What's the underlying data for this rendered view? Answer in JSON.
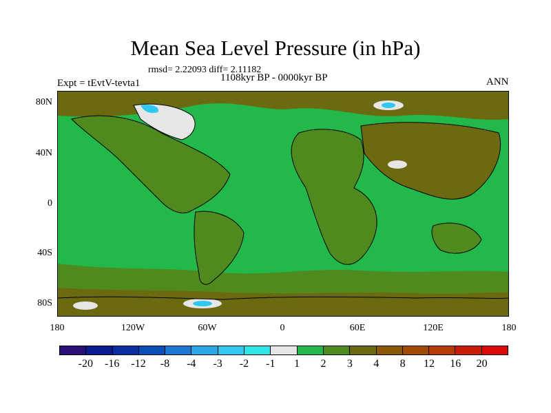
{
  "title": "Mean Sea Level Pressure (in hPa)",
  "stats": "rmsd= 2.22093 diff= 2.11182",
  "period": "1108kyr BP - 0000kyr BP",
  "experiment": "Expt = tEvtV-tevta1",
  "season": "ANN",
  "lat_labels": [
    "80N",
    "40N",
    "0",
    "40S",
    "80S"
  ],
  "lon_labels": [
    "180",
    "120W",
    "60W",
    "0",
    "60E",
    "120E",
    "180"
  ],
  "colorbar": {
    "colors": [
      "#2a0e78",
      "#0a1a8c",
      "#0a2fa0",
      "#0a4fb5",
      "#1e78d2",
      "#2aa8e6",
      "#30c8ee",
      "#2ee6e6",
      "#e6e6e6",
      "#22b84a",
      "#4e8a1e",
      "#6c6a10",
      "#8a5a06",
      "#a04a06",
      "#b53a06",
      "#c81e06",
      "#dc0a06"
    ],
    "labels": [
      "-20",
      "-16",
      "-12",
      "-8",
      "-4",
      "-3",
      "-2",
      "-1",
      "1",
      "2",
      "3",
      "4",
      "8",
      "12",
      "16",
      "20"
    ]
  },
  "map": {
    "ocean_color": "#22b84a",
    "land_color": "#4e8a1e",
    "high_color": "#6c6a10",
    "neg_color": "#e6e6e6",
    "cyan_color": "#30c8ee"
  }
}
